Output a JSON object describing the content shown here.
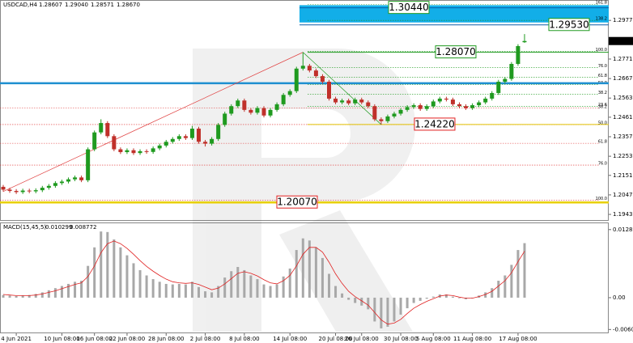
{
  "chart_data": [
    {
      "type": "candlestick",
      "title": "USDCAD,H4",
      "title_values": [
        "1.28607",
        "1.29040",
        "1.28571",
        "1.28670"
      ],
      "categories": [
        null,
        null,
        "4 Jun 2021",
        null,
        null,
        null,
        null,
        null,
        null,
        "10 Jun 08:00",
        null,
        null,
        null,
        null,
        "16 Jun 08:00",
        null,
        null,
        null,
        null,
        "22 Jun 08:00",
        null,
        null,
        null,
        null,
        null,
        "28 Jun 08:00",
        null,
        null,
        null,
        null,
        null,
        "2 Jul 08:00",
        null,
        null,
        null,
        null,
        null,
        "8 Jul 08:00",
        null,
        null,
        null,
        null,
        null,
        null,
        "14 Jul 08:00",
        null,
        null,
        null,
        null,
        null,
        null,
        "20 Jul 08:00",
        null,
        null,
        null,
        "26 Jul 08:00",
        null,
        null,
        null,
        null,
        null,
        "30 Jul 08:00",
        null,
        null,
        null,
        null,
        "5 Aug 08:00",
        null,
        null,
        null,
        null,
        null,
        "11 Aug 08:00",
        null,
        null,
        null,
        null,
        null,
        null,
        "17 Aug 08:00",
        null
      ],
      "open": [
        1.209,
        1.2075,
        1.2068,
        1.2062,
        1.207,
        1.2066,
        1.2072,
        1.2085,
        1.2095,
        1.211,
        1.2118,
        1.213,
        1.214,
        1.2125,
        1.229,
        1.238,
        1.243,
        1.236,
        1.229,
        1.2275,
        1.2285,
        1.227,
        1.228,
        1.2276,
        1.2295,
        1.231,
        1.233,
        1.2345,
        1.236,
        1.235,
        1.24,
        1.233,
        1.232,
        1.2345,
        1.242,
        1.248,
        1.252,
        1.255,
        1.25,
        1.2485,
        1.251,
        1.247,
        1.25,
        1.253,
        1.258,
        1.26,
        1.272,
        1.2735,
        1.271,
        1.268,
        1.265,
        1.256,
        1.254,
        1.255,
        1.2535,
        1.2555,
        1.254,
        1.252,
        1.245,
        1.244,
        1.2465,
        1.248,
        1.25,
        1.2515,
        1.2525,
        1.2505,
        1.252,
        1.2545,
        1.256,
        1.2555,
        1.253,
        1.252,
        1.251,
        1.2525,
        1.254,
        1.256,
        1.259,
        1.265,
        1.2665,
        1.2745,
        1.28607
      ],
      "high": [
        1.21,
        1.2085,
        1.2078,
        1.208,
        1.208,
        1.2082,
        1.2095,
        1.2105,
        1.212,
        1.2128,
        1.214,
        1.215,
        1.215,
        1.23,
        1.239,
        1.245,
        1.244,
        1.237,
        1.23,
        1.2295,
        1.2295,
        1.229,
        1.229,
        1.2305,
        1.232,
        1.234,
        1.2355,
        1.237,
        1.237,
        1.2415,
        1.241,
        1.234,
        1.2355,
        1.243,
        1.249,
        1.253,
        1.256,
        1.256,
        1.251,
        1.252,
        1.252,
        1.251,
        1.254,
        1.259,
        1.261,
        1.273,
        1.2807,
        1.2745,
        1.272,
        1.269,
        1.266,
        1.257,
        1.256,
        1.256,
        1.2565,
        1.2565,
        1.255,
        1.253,
        1.246,
        1.2475,
        1.249,
        1.251,
        1.2525,
        1.2535,
        1.2535,
        1.253,
        1.2555,
        1.257,
        1.257,
        1.2565,
        1.254,
        1.253,
        1.2535,
        1.255,
        1.257,
        1.26,
        1.266,
        1.2675,
        1.2755,
        1.285,
        1.2904
      ],
      "low": [
        1.2065,
        1.2058,
        1.2052,
        1.2052,
        1.2056,
        1.2056,
        1.2062,
        1.2075,
        1.2085,
        1.21,
        1.2108,
        1.212,
        1.2115,
        1.2115,
        1.228,
        1.237,
        1.235,
        1.228,
        1.2265,
        1.2265,
        1.226,
        1.226,
        1.2266,
        1.2266,
        1.2285,
        1.23,
        1.232,
        1.2335,
        1.234,
        1.234,
        1.232,
        1.2305,
        1.231,
        1.2335,
        1.241,
        1.247,
        1.251,
        1.249,
        1.2475,
        1.2475,
        1.246,
        1.246,
        1.249,
        1.252,
        1.257,
        1.259,
        1.271,
        1.27,
        1.267,
        1.264,
        1.255,
        1.253,
        1.253,
        1.2525,
        1.2525,
        1.253,
        1.251,
        1.244,
        1.2422,
        1.243,
        1.2455,
        1.247,
        1.249,
        1.2505,
        1.2495,
        1.2495,
        1.251,
        1.2535,
        1.2545,
        1.252,
        1.251,
        1.25,
        1.25,
        1.2515,
        1.253,
        1.255,
        1.258,
        1.264,
        1.2655,
        1.2735,
        1.28571
      ],
      "close": [
        1.2075,
        1.2068,
        1.2062,
        1.207,
        1.2066,
        1.2072,
        1.2085,
        1.2095,
        1.211,
        1.2118,
        1.213,
        1.214,
        1.2125,
        1.229,
        1.238,
        1.243,
        1.236,
        1.229,
        1.2275,
        1.2285,
        1.227,
        1.228,
        1.2276,
        1.2295,
        1.231,
        1.233,
        1.2345,
        1.236,
        1.235,
        1.24,
        1.233,
        1.232,
        1.2345,
        1.242,
        1.248,
        1.252,
        1.255,
        1.25,
        1.2485,
        1.251,
        1.247,
        1.25,
        1.253,
        1.258,
        1.26,
        1.272,
        1.2735,
        1.271,
        1.268,
        1.265,
        1.256,
        1.254,
        1.255,
        1.2535,
        1.2555,
        1.254,
        1.252,
        1.245,
        1.244,
        1.2465,
        1.248,
        1.25,
        1.2515,
        1.2525,
        1.2505,
        1.252,
        1.2545,
        1.256,
        1.2555,
        1.253,
        1.252,
        1.251,
        1.2525,
        1.254,
        1.256,
        1.259,
        1.265,
        1.2665,
        1.2745,
        1.284,
        1.2867
      ],
      "up_color": "#1f9a1f",
      "down_color": "#c0302a",
      "ylim": [
        1.1913,
        1.3077
      ],
      "yticks": [
        {
          "value": 1.2977,
          "label": "1.29770"
        },
        {
          "value": 1.2771,
          "label": "1.27710"
        },
        {
          "value": 1.2667,
          "label": "1.26670"
        },
        {
          "value": 1.2563,
          "label": "1.25630"
        },
        {
          "value": 1.2461,
          "label": "1.24610"
        },
        {
          "value": 1.2357,
          "label": "1.23570"
        },
        {
          "value": 1.2253,
          "label": "1.22530"
        },
        {
          "value": 1.2151,
          "label": "1.21510"
        },
        {
          "value": 1.2047,
          "label": "1.20470"
        },
        {
          "value": 1.1943,
          "label": "1.19430"
        }
      ],
      "zone": {
        "from": 1.3058,
        "to": 1.2966,
        "color": "#12aee8"
      },
      "levels": [
        {
          "value": 1.3044,
          "label": "1.30440",
          "color": "#0b5fa8",
          "label_color": "#1f9a1f"
        },
        {
          "value": 1.2953,
          "label": "1.29530",
          "color": "#0b5fa8",
          "label_color": "#1f9a1f"
        },
        {
          "value": 1.2807,
          "label": "1.28070",
          "color": "#1f9a1f",
          "label_color": "#1f9a1f"
        },
        {
          "value": 1.2642,
          "color": "#1e8fd0"
        },
        {
          "value": 1.2422,
          "label": "1.24220",
          "color": "#e0c000",
          "label_color": "#e02020"
        },
        {
          "value": 1.2007,
          "label": "1.20070",
          "color": "#e8d000",
          "label_color": "#e02020"
        }
      ],
      "fib_levels": [
        {
          "value": 1.3063,
          "label": "161.8",
          "color": "#1f9a1f"
        },
        {
          "value": 1.2977,
          "label": "138.2",
          "color": "#1f9a1f"
        },
        {
          "value": 1.2812,
          "label": "100.0",
          "color": "#1f9a1f"
        },
        {
          "value": 1.2726,
          "label": "76.0",
          "color": "#1f9a1f"
        },
        {
          "value": 1.2674,
          "label": "61.8",
          "color": "#1f9a1f"
        },
        {
          "value": 1.2635,
          "label": "50.0",
          "color": "#1f9a1f"
        },
        {
          "value": 1.2583,
          "label": "38.2",
          "color": "#1f9a1f"
        },
        {
          "value": 1.2518,
          "label": "23.6",
          "color": "#1f9a1f"
        },
        {
          "value": 1.2509,
          "label": "38.2",
          "color": "#e03030"
        },
        {
          "value": 1.2422,
          "label": "50.0",
          "color": "#e03030"
        },
        {
          "value": 1.2322,
          "label": "61.8",
          "color": "#e03030"
        },
        {
          "value": 1.2206,
          "label": "76.0",
          "color": "#e03030"
        },
        {
          "value": 1.2019,
          "label": "100.0",
          "color": "#e03030"
        }
      ]
    },
    {
      "type": "macd",
      "title": "MACD(15,45,5)",
      "histogram": [
        0.0005,
        0.0004,
        0.0003,
        0.0004,
        0.0005,
        0.0007,
        0.001,
        0.0014,
        0.0018,
        0.0022,
        0.0026,
        0.003,
        0.0032,
        0.006,
        0.0095,
        0.0125,
        0.0124,
        0.011,
        0.0095,
        0.008,
        0.0065,
        0.0052,
        0.0042,
        0.0035,
        0.003,
        0.0026,
        0.0025,
        0.0026,
        0.0025,
        0.003,
        0.002,
        0.0012,
        0.001,
        0.0022,
        0.0038,
        0.005,
        0.0058,
        0.0052,
        0.0042,
        0.0035,
        0.0025,
        0.0022,
        0.0025,
        0.004,
        0.0055,
        0.009,
        0.0112,
        0.0108,
        0.0095,
        0.0075,
        0.0045,
        0.0022,
        0.0008,
        -0.0004,
        -0.001,
        -0.0015,
        -0.0022,
        -0.0045,
        -0.0058,
        -0.0055,
        -0.0045,
        -0.0032,
        -0.002,
        -0.001,
        -0.0006,
        -0.0002,
        0.0002,
        0.0006,
        0.0006,
        0.0002,
        -0.0001,
        -0.0003,
        -0.0001,
        0.0004,
        0.001,
        0.0018,
        0.0032,
        0.0042,
        0.0062,
        0.009,
        0.010299
      ],
      "signal": [
        0.0006,
        0.0005,
        0.0004,
        0.0004,
        0.0004,
        0.0005,
        0.0007,
        0.001,
        0.0013,
        0.0017,
        0.0021,
        0.0025,
        0.0028,
        0.004,
        0.006,
        0.0085,
        0.0102,
        0.0107,
        0.0102,
        0.0093,
        0.0082,
        0.007,
        0.0059,
        0.005,
        0.0042,
        0.0035,
        0.003,
        0.0028,
        0.0027,
        0.0028,
        0.0025,
        0.002,
        0.0015,
        0.0018,
        0.0026,
        0.0036,
        0.0046,
        0.0049,
        0.0046,
        0.0041,
        0.0034,
        0.0028,
        0.0026,
        0.0032,
        0.0042,
        0.006,
        0.0082,
        0.0095,
        0.0095,
        0.0086,
        0.0067,
        0.0045,
        0.0027,
        0.0012,
        0.0002,
        -0.0006,
        -0.0014,
        -0.0028,
        -0.0042,
        -0.005,
        -0.0048,
        -0.0041,
        -0.003,
        -0.002,
        -0.0013,
        -0.0007,
        -0.0002,
        0.0003,
        0.0005,
        0.0004,
        0.0001,
        -0.0001,
        -0.0001,
        0.0002,
        0.0006,
        0.0012,
        0.0022,
        0.0032,
        0.0047,
        0.0068,
        0.008772
      ],
      "histogram_color": "#a8a8a8",
      "signal_color": "#e02020",
      "ylim": [
        -0.00673,
        0.0139
      ],
      "yticks": [
        0.01286,
        {
          "value": 0,
          "label": "0.00"
        },
        -0.00601
      ]
    }
  ]
}
